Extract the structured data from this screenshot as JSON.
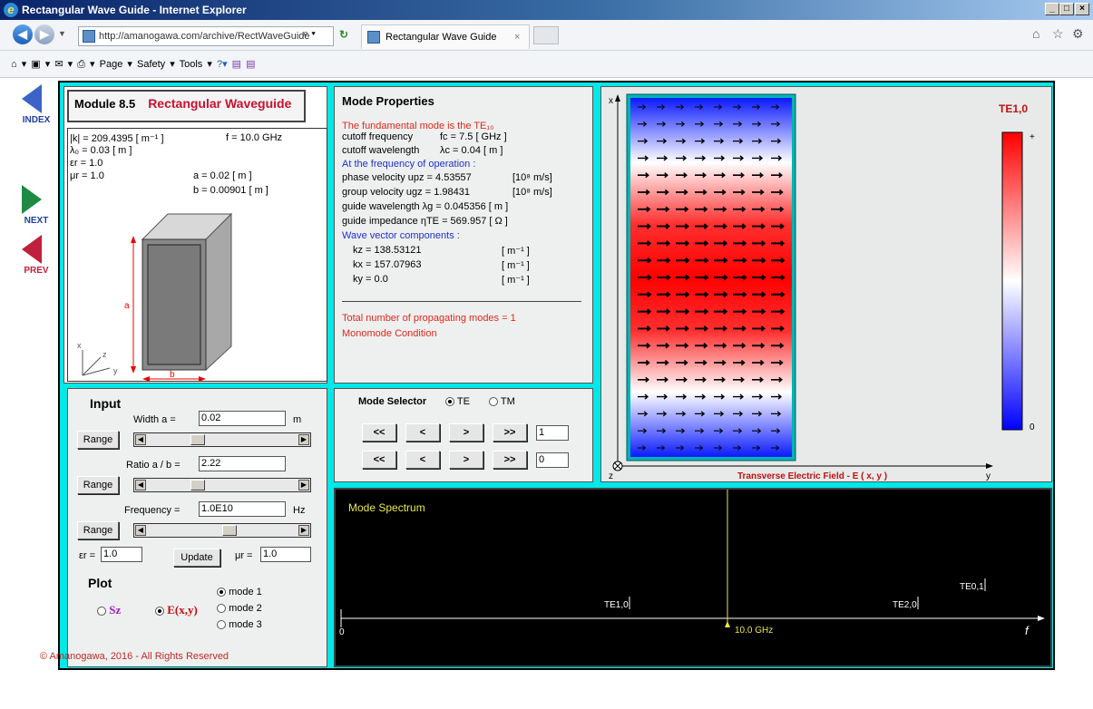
{
  "window": {
    "title": "Rectangular Wave Guide - Internet Explorer"
  },
  "browser": {
    "url": "http://amanogawa.com/archive/RectWaveGuide",
    "tab_title": "Rectangular Wave Guide",
    "cmd": {
      "page": "Page ▾",
      "safety": "Safety ▾",
      "tools": "Tools ▾"
    }
  },
  "sidenav": {
    "index": "INDEX",
    "next": "NEXT",
    "prev": "PREV"
  },
  "module": {
    "number": "Module 8.5",
    "title": "Rectangular Waveguide"
  },
  "params": {
    "k": "|k| = 209.4395 [ m⁻¹ ]",
    "f": "f = 10.0 GHz",
    "lambda0": "λ₀ = 0.03 [ m ]",
    "eps": "εr = 1.0",
    "mu": "μr = 1.0",
    "a": "a = 0.02 [ m ]",
    "b": "b = 0.00901 [ m ]",
    "dim_a": "a",
    "dim_b": "b",
    "axis_x": "x",
    "axis_y": "y",
    "axis_z": "z"
  },
  "mode_properties": {
    "heading": "Mode Properties",
    "fundamental": "The fundamental mode is the TE₁₀",
    "cutoff_freq_label": "cutoff frequency",
    "cutoff_freq_value": "fc = 7.5 [ GHz ]",
    "cutoff_wl_label": "cutoff wavelength",
    "cutoff_wl_value": "λc = 0.04 [ m ]",
    "at_freq": "At the frequency of operation :",
    "phase_vel": "phase velocity  upz = 4.53557",
    "phase_unit": "[10⁸ m/s]",
    "group_vel": "group velocity  ugz = 1.98431",
    "group_unit": "[10⁸ m/s]",
    "guide_wl": "guide wavelength  λg = 0.045356 [ m ]",
    "guide_imp": "guide impedance  ηTE = 569.957 [ Ω ]",
    "wave_vec": "Wave vector components :",
    "kz": "kz = 138.53121",
    "kx": "kx = 157.07963",
    "ky": "ky = 0.0",
    "kunit": "[ m⁻¹ ]",
    "total_modes": "Total number of propagating modes  =  1",
    "monomode": "Monomode Condition"
  },
  "mode_selector": {
    "label": "Mode Selector",
    "te": "TE",
    "tm": "TM",
    "btn_ll": "<<",
    "btn_l": "<",
    "btn_r": ">",
    "btn_rr": ">>",
    "m_value": "1",
    "n_value": "0"
  },
  "field": {
    "mode_label": "TE1,0",
    "plus": "+",
    "zero": "0",
    "caption": "Transverse Electric Field - E ( x, y )",
    "axis_x": "x",
    "axis_y": "y",
    "axis_z": "z",
    "colors": {
      "high": "#ff0000",
      "mid": "#ffffff",
      "low": "#0000ff"
    }
  },
  "input": {
    "heading": "Input",
    "width_label": "Width  a =",
    "width_value": "0.02",
    "width_unit": "m",
    "range": "Range",
    "ratio_label": "Ratio a / b =",
    "ratio_value": "2.22",
    "freq_label": "Frequency =",
    "freq_value": "1.0E10",
    "freq_unit": "Hz",
    "eps_label": "εr =",
    "eps_value": "1.0",
    "update": "Update",
    "mu_label": "μr =",
    "mu_value": "1.0",
    "slider_width": 0.32,
    "slider_ratio": 0.32,
    "slider_freq": 0.55
  },
  "plot": {
    "heading": "Plot",
    "sz": "Sz",
    "exy": "E(x,y)",
    "mode1": "mode 1",
    "mode2": "mode 2",
    "mode3": "mode 3"
  },
  "spectrum": {
    "title": "Mode Spectrum",
    "te10": "TE1,0",
    "te20": "TE2,0",
    "te01": "TE0,1",
    "freq_marker": "10.0 GHz",
    "zero": "0",
    "axis": "f"
  },
  "footer": "©  Amanogawa, 2016 - All Rights Reserved"
}
